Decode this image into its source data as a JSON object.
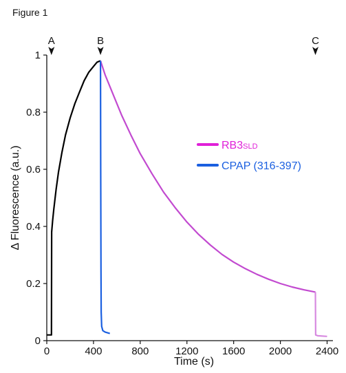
{
  "figure_label": "Figure 1",
  "chart_data": {
    "type": "line",
    "xlabel": "Time (s)",
    "ylabel": "Δ Fluorescence (a.u.)",
    "xlim": [
      0,
      2450
    ],
    "ylim": [
      0,
      1.0
    ],
    "xticks": [
      0,
      400,
      800,
      1200,
      1600,
      2000,
      2400
    ],
    "yticks": [
      0,
      0.2,
      0.4,
      0.6,
      0.8,
      1.0
    ],
    "ytick_labels": [
      "0",
      "0.2",
      "0.4",
      "0.6",
      "0.8",
      "1"
    ],
    "markers": [
      {
        "label": "A",
        "x": 40
      },
      {
        "label": "B",
        "x": 460
      },
      {
        "label": "C",
        "x": 2300
      }
    ],
    "legend": {
      "placement": "center-right",
      "entries": [
        {
          "name_main": "RB3",
          "name_sub": "SLD",
          "color": "#e020d8"
        },
        {
          "name_main": "CPAP (316-397)",
          "name_sub": "",
          "color": "#1a5fe0"
        }
      ]
    },
    "series": [
      {
        "key": "baseline-association",
        "color": "#000000",
        "points": [
          [
            0,
            0.02
          ],
          [
            30,
            0.02
          ],
          [
            40,
            0.02
          ],
          [
            42,
            0.38
          ],
          [
            50,
            0.42
          ],
          [
            60,
            0.46
          ],
          [
            80,
            0.53
          ],
          [
            100,
            0.59
          ],
          [
            130,
            0.66
          ],
          [
            160,
            0.72
          ],
          [
            200,
            0.78
          ],
          [
            240,
            0.83
          ],
          [
            280,
            0.87
          ],
          [
            320,
            0.91
          ],
          [
            360,
            0.94
          ],
          [
            400,
            0.96
          ],
          [
            430,
            0.975
          ],
          [
            460,
            0.98
          ]
        ]
      },
      {
        "key": "rb3-sld",
        "color": "#c24ad0",
        "points": [
          [
            460,
            0.98
          ],
          [
            500,
            0.93
          ],
          [
            560,
            0.87
          ],
          [
            640,
            0.79
          ],
          [
            720,
            0.72
          ],
          [
            800,
            0.655
          ],
          [
            900,
            0.585
          ],
          [
            1000,
            0.52
          ],
          [
            1100,
            0.465
          ],
          [
            1200,
            0.415
          ],
          [
            1300,
            0.372
          ],
          [
            1400,
            0.335
          ],
          [
            1500,
            0.302
          ],
          [
            1600,
            0.275
          ],
          [
            1700,
            0.252
          ],
          [
            1800,
            0.232
          ],
          [
            1900,
            0.215
          ],
          [
            2000,
            0.2
          ],
          [
            2100,
            0.188
          ],
          [
            2200,
            0.178
          ],
          [
            2300,
            0.17
          ]
        ]
      },
      {
        "key": "rb3-sld-tail",
        "color": "#d78ae0",
        "points": [
          [
            2300,
            0.17
          ],
          [
            2302,
            0.02
          ],
          [
            2320,
            0.017
          ],
          [
            2400,
            0.015
          ]
        ]
      },
      {
        "key": "cpap",
        "color": "#1a5fe0",
        "points": [
          [
            460,
            0.98
          ],
          [
            462,
            0.6
          ],
          [
            464,
            0.25
          ],
          [
            466,
            0.1
          ],
          [
            470,
            0.05
          ],
          [
            480,
            0.035
          ],
          [
            500,
            0.03
          ],
          [
            540,
            0.025
          ]
        ]
      }
    ]
  }
}
